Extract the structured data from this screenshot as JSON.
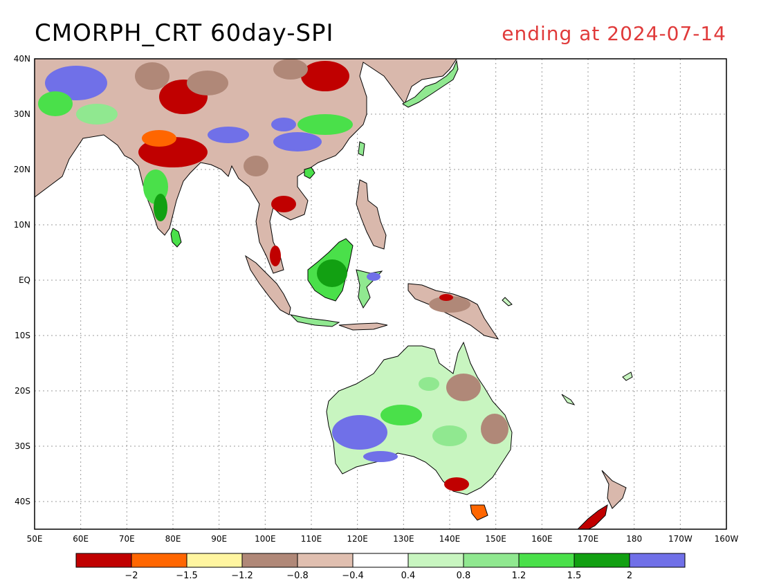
{
  "title": "CMORPH_CRT 60day-SPI",
  "subtitle": "ending at 2024-07-14",
  "map": {
    "lon_labels": [
      "50E",
      "60E",
      "70E",
      "80E",
      "90E",
      "100E",
      "110E",
      "120E",
      "130E",
      "140E",
      "150E",
      "160E",
      "170E",
      "180",
      "170W",
      "160W"
    ],
    "lat_labels": [
      "40N",
      "30N",
      "20N",
      "10N",
      "EQ",
      "10S",
      "20S",
      "30S",
      "40S"
    ],
    "lon_range": [
      50,
      200
    ],
    "lat_range": [
      -45,
      40
    ],
    "grid": "dotted",
    "land_outline_color": "#000000"
  },
  "legend": {
    "colors": [
      "#c00000",
      "#ff6600",
      "#fff5a0",
      "#b08878",
      "#e0bfb0",
      "#ffffff",
      "#c8f5c0",
      "#90e890",
      "#4ae04a",
      "#12a012",
      "#7070e8"
    ],
    "labels": [
      "-2",
      "-1.5",
      "-1.2",
      "-0.8",
      "-0.4",
      "0.4",
      "0.8",
      "1.2",
      "1.5",
      "2"
    ]
  }
}
